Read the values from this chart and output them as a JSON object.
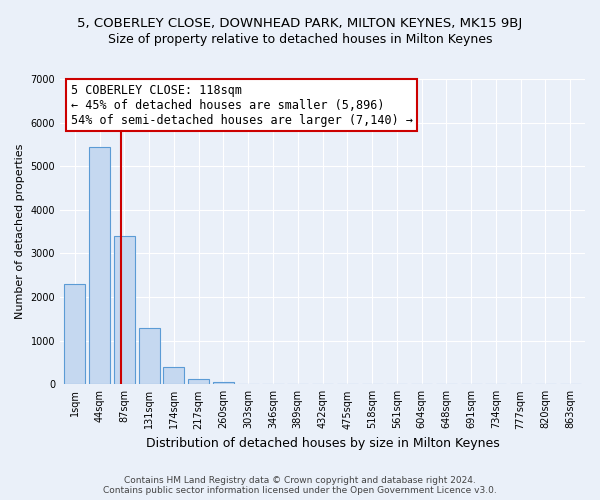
{
  "title": "5, COBERLEY CLOSE, DOWNHEAD PARK, MILTON KEYNES, MK15 9BJ",
  "subtitle": "Size of property relative to detached houses in Milton Keynes",
  "xlabel": "Distribution of detached houses by size in Milton Keynes",
  "ylabel": "Number of detached properties",
  "bar_labels": [
    "1sqm",
    "44sqm",
    "87sqm",
    "131sqm",
    "174sqm",
    "217sqm",
    "260sqm",
    "303sqm",
    "346sqm",
    "389sqm",
    "432sqm",
    "475sqm",
    "518sqm",
    "561sqm",
    "604sqm",
    "648sqm",
    "691sqm",
    "734sqm",
    "777sqm",
    "820sqm",
    "863sqm"
  ],
  "bar_values": [
    2300,
    5450,
    3400,
    1300,
    400,
    120,
    50,
    10,
    5,
    0,
    0,
    0,
    0,
    0,
    0,
    0,
    0,
    0,
    0,
    0,
    0
  ],
  "bar_color": "#c5d8f0",
  "bar_edge_color": "#5b9bd5",
  "background_color": "#eaf0f9",
  "grid_color": "#ffffff",
  "vline_x": 1.85,
  "vline_color": "#cc0000",
  "annotation_text": "5 COBERLEY CLOSE: 118sqm\n← 45% of detached houses are smaller (5,896)\n54% of semi-detached houses are larger (7,140) →",
  "annotation_box_color": "#ffffff",
  "annotation_box_edge": "#cc0000",
  "ylim": [
    0,
    7000
  ],
  "yticks": [
    0,
    1000,
    2000,
    3000,
    4000,
    5000,
    6000,
    7000
  ],
  "footer_text": "Contains HM Land Registry data © Crown copyright and database right 2024.\nContains public sector information licensed under the Open Government Licence v3.0.",
  "title_fontsize": 9.5,
  "subtitle_fontsize": 9,
  "xlabel_fontsize": 9,
  "ylabel_fontsize": 8,
  "tick_fontsize": 7,
  "annotation_fontsize": 8.5,
  "footer_fontsize": 6.5
}
